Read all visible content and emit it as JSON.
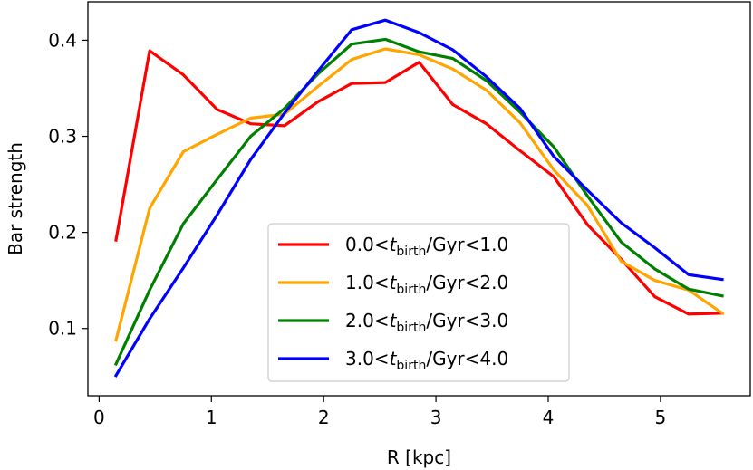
{
  "chart_data": {
    "type": "line",
    "title": "",
    "xlabel": "R [kpc]",
    "ylabel": "Bar strength",
    "xlim": [
      -0.1,
      5.8
    ],
    "ylim": [
      0.03,
      0.44
    ],
    "xticks": [
      0,
      1,
      2,
      3,
      4,
      5
    ],
    "xtick_labels": [
      "0",
      "1",
      "2",
      "3",
      "4",
      "5"
    ],
    "yticks": [
      0.1,
      0.2,
      0.3,
      0.4
    ],
    "ytick_labels": [
      "0.1",
      "0.2",
      "0.3",
      "0.4"
    ],
    "grid": false,
    "legend_position": "center-right",
    "x": [
      0.15,
      0.45,
      0.75,
      1.05,
      1.35,
      1.65,
      1.95,
      2.25,
      2.55,
      2.85,
      3.15,
      3.45,
      3.75,
      4.05,
      4.35,
      4.65,
      4.95,
      5.25,
      5.55
    ],
    "series": [
      {
        "name": "0.0<t_birth/Gyr<1.0",
        "legend_prefix": "0.0<",
        "legend_var": "t",
        "legend_sub": "birth",
        "legend_suffix": "/Gyr<1.0",
        "color": "#ff0000",
        "values": [
          0.192,
          0.389,
          0.364,
          0.328,
          0.313,
          0.311,
          0.336,
          0.355,
          0.356,
          0.377,
          0.333,
          0.313,
          0.285,
          0.258,
          0.208,
          0.172,
          0.133,
          0.115,
          0.116
        ]
      },
      {
        "name": "1.0<t_birth/Gyr<2.0",
        "legend_prefix": "1.0<",
        "legend_var": "t",
        "legend_sub": "birth",
        "legend_suffix": "/Gyr<2.0",
        "color": "#ffa500",
        "values": [
          0.088,
          0.225,
          0.284,
          0.302,
          0.319,
          0.323,
          0.352,
          0.38,
          0.391,
          0.385,
          0.37,
          0.348,
          0.314,
          0.265,
          0.228,
          0.17,
          0.15,
          0.14,
          0.116
        ]
      },
      {
        "name": "2.0<t_birth/Gyr<3.0",
        "legend_prefix": "2.0<",
        "legend_var": "t",
        "legend_sub": "birth",
        "legend_suffix": "/Gyr<3.0",
        "color": "#008000",
        "values": [
          0.063,
          0.14,
          0.209,
          0.255,
          0.3,
          0.329,
          0.365,
          0.396,
          0.401,
          0.388,
          0.381,
          0.358,
          0.325,
          0.289,
          0.238,
          0.19,
          0.162,
          0.141,
          0.134
        ]
      },
      {
        "name": "3.0<t_birth/Gyr<4.0",
        "legend_prefix": "3.0<",
        "legend_var": "t",
        "legend_sub": "birth",
        "legend_suffix": "/Gyr<4.0",
        "color": "#0000ff",
        "values": [
          0.051,
          0.11,
          0.163,
          0.218,
          0.276,
          0.324,
          0.368,
          0.411,
          0.421,
          0.408,
          0.39,
          0.362,
          0.329,
          0.279,
          0.244,
          0.21,
          0.184,
          0.156,
          0.151
        ]
      }
    ]
  }
}
